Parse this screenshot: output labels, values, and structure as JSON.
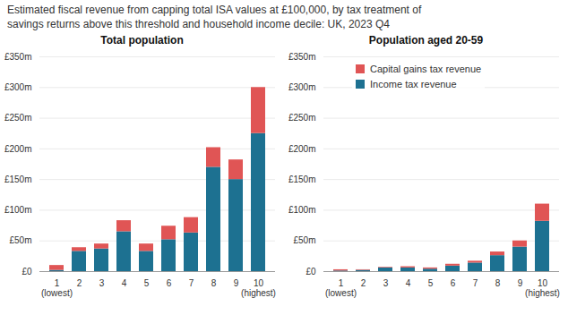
{
  "title": "Estimated fiscal revenue from capping total ISA values at £100,000, by tax treatment of\nsavings returns above this threshold and household income decile: UK, 2023 Q4",
  "chart_data": [
    {
      "type": "bar",
      "stacked": true,
      "title": "Total population",
      "categories": [
        "1",
        "2",
        "3",
        "4",
        "5",
        "6",
        "7",
        "8",
        "9",
        "10"
      ],
      "series": [
        {
          "name": "Income tax revenue",
          "color": "#1d7191",
          "values": [
            2,
            33,
            37,
            65,
            33,
            52,
            63,
            170,
            150,
            225
          ]
        },
        {
          "name": "Capital gains tax revenue",
          "color": "#e05555",
          "values": [
            8,
            6,
            8,
            18,
            12,
            22,
            25,
            32,
            32,
            75
          ]
        }
      ],
      "ylim": [
        0,
        350
      ],
      "yticks": [
        {
          "value": 0,
          "label": "£0"
        },
        {
          "value": 50,
          "label": "£50m"
        },
        {
          "value": 100,
          "label": "£100m"
        },
        {
          "value": 150,
          "label": "£150m"
        },
        {
          "value": 200,
          "label": "£200m"
        },
        {
          "value": 250,
          "label": "£250m"
        },
        {
          "value": 300,
          "label": "£300m"
        },
        {
          "value": 350,
          "label": "£350m"
        }
      ],
      "grid": true,
      "annotations": [
        {
          "text": "(lowest)",
          "x": "1"
        },
        {
          "text": "(highest)",
          "x": "10"
        }
      ]
    },
    {
      "type": "bar",
      "stacked": true,
      "title": "Population aged 20-59",
      "categories": [
        "1",
        "2",
        "3",
        "4",
        "5",
        "6",
        "7",
        "8",
        "9",
        "10"
      ],
      "series": [
        {
          "name": "Income tax revenue",
          "color": "#1d7191",
          "values": [
            1,
            2,
            6,
            6,
            4,
            9,
            14,
            26,
            40,
            82
          ]
        },
        {
          "name": "Capital gains tax revenue",
          "color": "#e05555",
          "values": [
            2,
            1,
            1,
            2,
            2,
            3,
            3,
            6,
            10,
            28
          ]
        }
      ],
      "ylim": [
        0,
        350
      ],
      "yticks": [
        {
          "value": 0,
          "label": "£0"
        },
        {
          "value": 50,
          "label": "£50m"
        },
        {
          "value": 100,
          "label": "£100m"
        },
        {
          "value": 150,
          "label": "£150m"
        },
        {
          "value": 200,
          "label": "£200m"
        },
        {
          "value": 250,
          "label": "£250m"
        },
        {
          "value": 300,
          "label": "£300m"
        },
        {
          "value": 350,
          "label": "£350m"
        }
      ],
      "grid": true,
      "legend": "upper left",
      "annotations": [
        {
          "text": "(lowest)",
          "x": "1"
        },
        {
          "text": "(highest)",
          "x": "10"
        }
      ]
    }
  ]
}
